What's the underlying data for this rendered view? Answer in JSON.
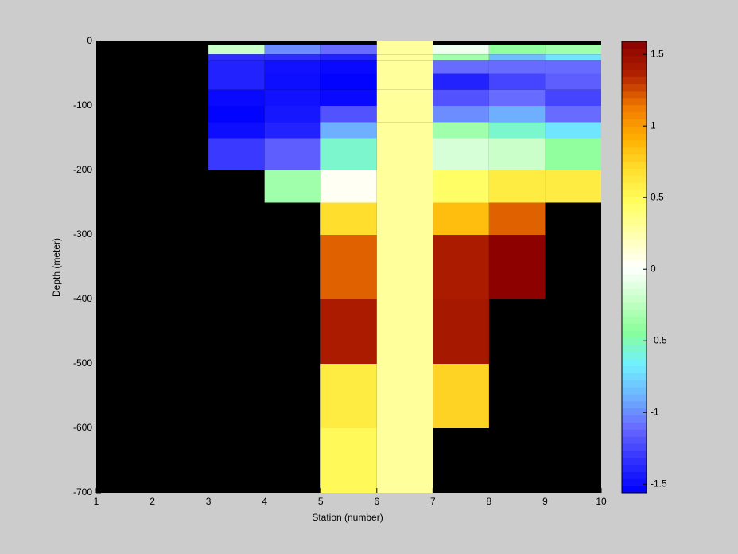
{
  "chart_data": {
    "type": "heatmap",
    "xlabel": "Station (number)",
    "ylabel": "Depth (meter)",
    "x_edges": [
      1,
      2,
      3,
      4,
      5,
      6,
      7,
      8,
      9,
      10
    ],
    "y_edges": [
      0,
      -5,
      -20,
      -30,
      -50,
      -75,
      -100,
      -125,
      -150,
      -200,
      -250,
      -300,
      -400,
      -500,
      -600,
      -700
    ],
    "xlim": [
      1,
      10
    ],
    "xticks": [
      1,
      2,
      3,
      4,
      5,
      6,
      7,
      8,
      9,
      10
    ],
    "ylim": [
      -700,
      0
    ],
    "yticks": [
      0,
      -100,
      -200,
      -300,
      -400,
      -500,
      -600,
      -700
    ],
    "values": [
      [
        null,
        null,
        null,
        null,
        null,
        0.3,
        null,
        null,
        null
      ],
      [
        null,
        null,
        -0.2,
        -1.0,
        -1.1,
        0.3,
        -0.05,
        -0.4,
        -0.35
      ],
      [
        null,
        null,
        -1.35,
        -1.35,
        -1.4,
        0.3,
        -0.35,
        -0.85,
        -0.7
      ],
      [
        null,
        null,
        -1.4,
        -1.48,
        -1.52,
        0.3,
        -1.1,
        -1.1,
        -1.1
      ],
      [
        null,
        null,
        -1.4,
        -1.5,
        -1.55,
        0.3,
        -1.4,
        -1.25,
        -1.15
      ],
      [
        null,
        null,
        -1.52,
        -1.48,
        -1.52,
        0.3,
        -1.2,
        -1.1,
        -1.25
      ],
      [
        null,
        null,
        -1.55,
        -1.45,
        -1.2,
        0.3,
        -1.0,
        -0.9,
        -1.1
      ],
      [
        null,
        null,
        -1.5,
        -1.4,
        -0.9,
        0.3,
        -0.35,
        -0.55,
        -0.7
      ],
      [
        null,
        null,
        -1.3,
        -1.15,
        -0.55,
        0.3,
        -0.15,
        -0.2,
        -0.4
      ],
      [
        null,
        null,
        null,
        -0.35,
        0.05,
        0.3,
        0.45,
        0.6,
        0.6
      ],
      [
        null,
        null,
        null,
        null,
        0.7,
        0.3,
        0.85,
        1.2,
        null
      ],
      [
        null,
        null,
        null,
        null,
        1.2,
        0.3,
        1.4,
        1.58,
        null
      ],
      [
        null,
        null,
        null,
        null,
        1.4,
        0.3,
        1.42,
        null,
        null
      ],
      [
        null,
        null,
        null,
        null,
        0.6,
        0.3,
        0.75,
        null,
        null
      ],
      [
        null,
        null,
        null,
        null,
        0.5,
        0.3,
        null,
        null,
        null
      ]
    ],
    "clim": [
      -1.56,
      1.59
    ],
    "cticks": [
      -1.5,
      -1,
      -0.5,
      0,
      0.5,
      1,
      1.5
    ],
    "colormap": [
      "#0000ff",
      "#3030ff",
      "#6868ff",
      "#6eb4ff",
      "#70f0ff",
      "#88ff98",
      "#c8ffc8",
      "#ffffff",
      "#ffffb0",
      "#ffff60",
      "#ffe030",
      "#ffb000",
      "#f07800",
      "#b02000",
      "#8b0000"
    ],
    "nan_color": "#000000"
  }
}
